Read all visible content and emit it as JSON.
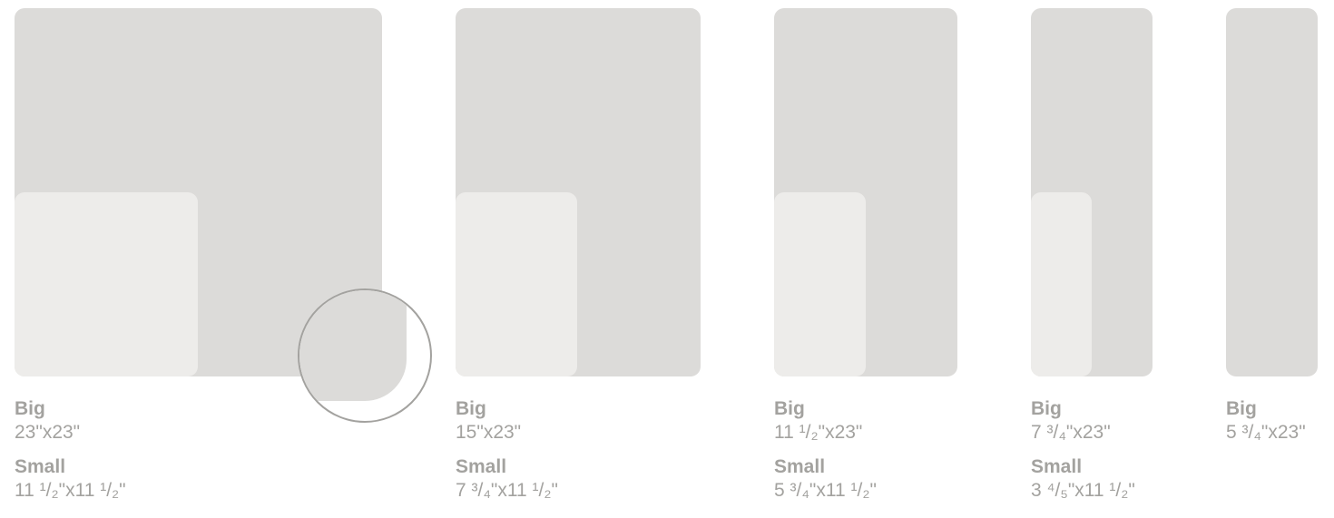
{
  "items": [
    {
      "big_label": "Big",
      "big_dims": "23\"x23\"",
      "small_label": "Small",
      "small_dims": "11 ¹/₂\"x11 ¹/₂\""
    },
    {
      "big_label": "Big",
      "big_dims": "15\"x23\"",
      "small_label": "Small",
      "small_dims": "7 ³/₄\"x11 ¹/₂\""
    },
    {
      "big_label": "Big",
      "big_dims": "11 ¹/₂\"x23\"",
      "small_label": "Small",
      "small_dims": "5 ³/₄\"x11 ¹/₂\""
    },
    {
      "big_label": "Big",
      "big_dims": "7 ³/₄\"x23\"",
      "small_label": "Small",
      "small_dims": "3 ⁴/₅\"x11 ¹/₂\""
    },
    {
      "big_label": "Big",
      "big_dims": "5 ³/₄\"x23\""
    }
  ],
  "colors": {
    "big_panel": "#dcdbd9",
    "small_panel": "#edecea",
    "label_text": "#a3a29f"
  }
}
